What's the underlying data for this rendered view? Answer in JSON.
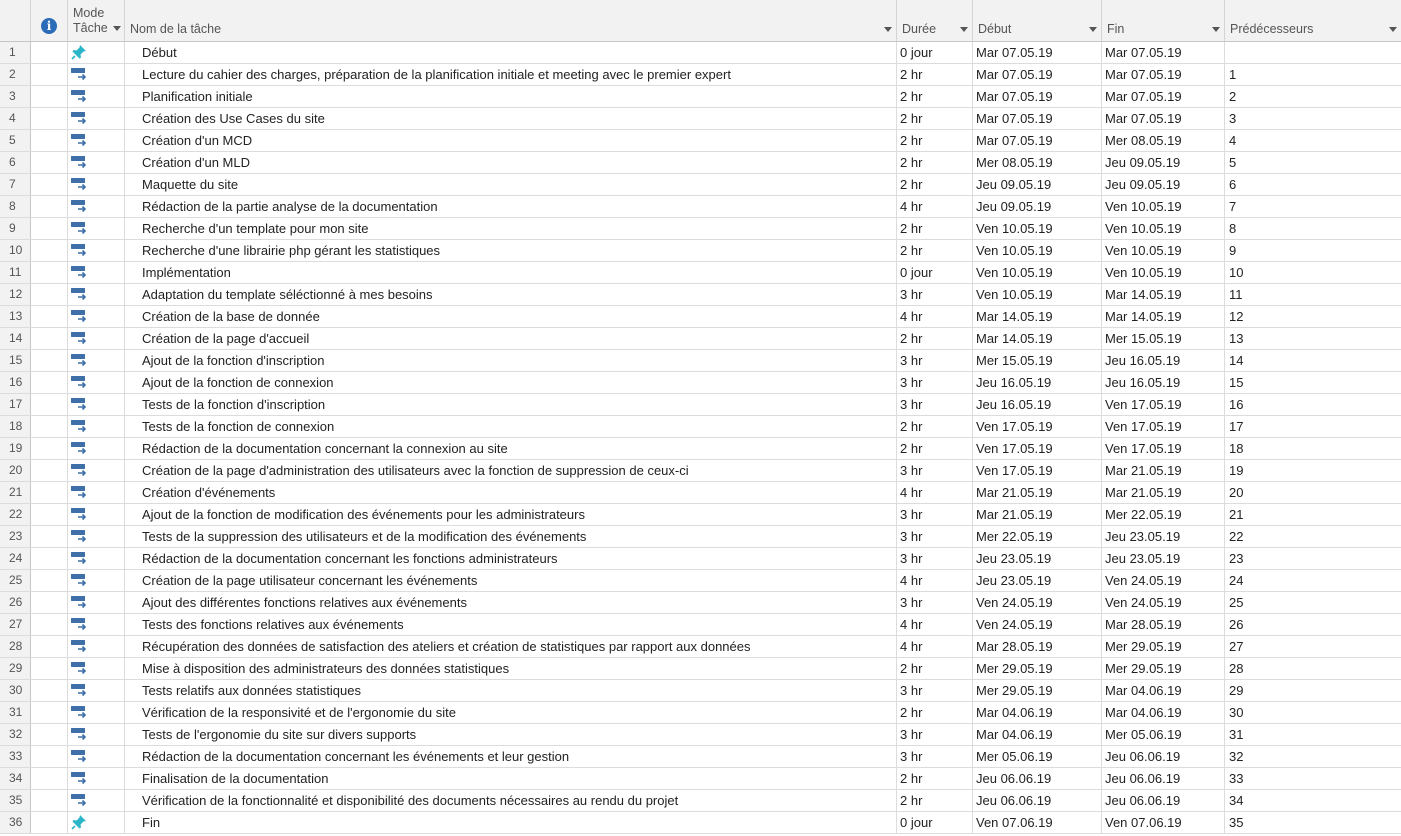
{
  "header": {
    "mode_line1": "Mode",
    "mode_line2": "Tâche",
    "name": "Nom de la tâche",
    "duration": "Durée",
    "start": "Début",
    "finish": "Fin",
    "predecessors": "Prédécesseurs"
  },
  "colors": {
    "auto_icon": "#3f6fa8",
    "pin_icon": "#2bb5c8",
    "info_icon": "#2b6cb8"
  },
  "tasks": [
    {
      "id": "1",
      "mode": "manual",
      "name": "Début",
      "duration": "0 jour",
      "start": "Mar 07.05.19",
      "finish": "Mar 07.05.19",
      "pred": ""
    },
    {
      "id": "2",
      "mode": "auto",
      "name": "Lecture du cahier des charges, préparation de la planification initiale et meeting avec le premier expert",
      "duration": "2 hr",
      "start": "Mar 07.05.19",
      "finish": "Mar 07.05.19",
      "pred": "1"
    },
    {
      "id": "3",
      "mode": "auto",
      "name": "Planification initiale",
      "duration": "2 hr",
      "start": "Mar 07.05.19",
      "finish": "Mar 07.05.19",
      "pred": "2"
    },
    {
      "id": "4",
      "mode": "auto",
      "name": "Création des Use Cases du site",
      "duration": "2 hr",
      "start": "Mar 07.05.19",
      "finish": "Mar 07.05.19",
      "pred": "3"
    },
    {
      "id": "5",
      "mode": "auto",
      "name": "Création d'un MCD",
      "duration": "2 hr",
      "start": "Mar 07.05.19",
      "finish": "Mer 08.05.19",
      "pred": "4"
    },
    {
      "id": "6",
      "mode": "auto",
      "name": "Création d'un MLD",
      "duration": "2 hr",
      "start": "Mer 08.05.19",
      "finish": "Jeu 09.05.19",
      "pred": "5"
    },
    {
      "id": "7",
      "mode": "auto",
      "name": "Maquette du site",
      "duration": "2 hr",
      "start": "Jeu 09.05.19",
      "finish": "Jeu 09.05.19",
      "pred": "6"
    },
    {
      "id": "8",
      "mode": "auto",
      "name": "Rédaction de la partie analyse de la documentation",
      "duration": "4 hr",
      "start": "Jeu 09.05.19",
      "finish": "Ven 10.05.19",
      "pred": "7"
    },
    {
      "id": "9",
      "mode": "auto",
      "name": "Recherche d'un template pour mon site",
      "duration": "2 hr",
      "start": "Ven 10.05.19",
      "finish": "Ven 10.05.19",
      "pred": "8"
    },
    {
      "id": "10",
      "mode": "auto",
      "name": "Recherche d'une librairie php gérant les statistiques",
      "duration": "2 hr",
      "start": "Ven 10.05.19",
      "finish": "Ven 10.05.19",
      "pred": "9"
    },
    {
      "id": "11",
      "mode": "auto",
      "name": "Implémentation",
      "duration": "0 jour",
      "start": "Ven 10.05.19",
      "finish": "Ven 10.05.19",
      "pred": "10"
    },
    {
      "id": "12",
      "mode": "auto",
      "name": "Adaptation du template séléctionné à mes besoins",
      "duration": "3 hr",
      "start": "Ven 10.05.19",
      "finish": "Mar 14.05.19",
      "pred": "11"
    },
    {
      "id": "13",
      "mode": "auto",
      "name": "Création de la base de donnée",
      "duration": "4 hr",
      "start": "Mar 14.05.19",
      "finish": "Mar 14.05.19",
      "pred": "12"
    },
    {
      "id": "14",
      "mode": "auto",
      "name": "Création de la page d'accueil",
      "duration": "2 hr",
      "start": "Mar 14.05.19",
      "finish": "Mer 15.05.19",
      "pred": "13"
    },
    {
      "id": "15",
      "mode": "auto",
      "name": "Ajout de la fonction d'inscription",
      "duration": "3 hr",
      "start": "Mer 15.05.19",
      "finish": "Jeu 16.05.19",
      "pred": "14"
    },
    {
      "id": "16",
      "mode": "auto",
      "name": "Ajout de la fonction de connexion",
      "duration": "3 hr",
      "start": "Jeu 16.05.19",
      "finish": "Jeu 16.05.19",
      "pred": "15"
    },
    {
      "id": "17",
      "mode": "auto",
      "name": "Tests de la fonction d'inscription",
      "duration": "3 hr",
      "start": "Jeu 16.05.19",
      "finish": "Ven 17.05.19",
      "pred": "16"
    },
    {
      "id": "18",
      "mode": "auto",
      "name": "Tests de la fonction de connexion",
      "duration": "2 hr",
      "start": "Ven 17.05.19",
      "finish": "Ven 17.05.19",
      "pred": "17"
    },
    {
      "id": "19",
      "mode": "auto",
      "name": "Rédaction de la documentation concernant la connexion au site",
      "duration": "2 hr",
      "start": "Ven 17.05.19",
      "finish": "Ven 17.05.19",
      "pred": "18"
    },
    {
      "id": "20",
      "mode": "auto",
      "name": "Création de la page d'administration des utilisateurs avec la fonction de suppression de ceux-ci",
      "duration": "3 hr",
      "start": "Ven 17.05.19",
      "finish": "Mar 21.05.19",
      "pred": "19"
    },
    {
      "id": "21",
      "mode": "auto",
      "name": "Création d'événements",
      "duration": "4 hr",
      "start": "Mar 21.05.19",
      "finish": "Mar 21.05.19",
      "pred": "20"
    },
    {
      "id": "22",
      "mode": "auto",
      "name": "Ajout de la fonction de modification des événements pour les administrateurs",
      "duration": "3 hr",
      "start": "Mar 21.05.19",
      "finish": "Mer 22.05.19",
      "pred": "21"
    },
    {
      "id": "23",
      "mode": "auto",
      "name": "Tests de la suppression des utilisateurs et de la modification des événements",
      "duration": "3 hr",
      "start": "Mer 22.05.19",
      "finish": "Jeu 23.05.19",
      "pred": "22"
    },
    {
      "id": "24",
      "mode": "auto",
      "name": "Rédaction de la documentation concernant les fonctions administrateurs",
      "duration": "3 hr",
      "start": "Jeu 23.05.19",
      "finish": "Jeu 23.05.19",
      "pred": "23"
    },
    {
      "id": "25",
      "mode": "auto",
      "name": "Création de la page utilisateur concernant les événements",
      "duration": "4 hr",
      "start": "Jeu 23.05.19",
      "finish": "Ven 24.05.19",
      "pred": "24"
    },
    {
      "id": "26",
      "mode": "auto",
      "name": "Ajout des différentes fonctions relatives aux événements",
      "duration": "3 hr",
      "start": "Ven 24.05.19",
      "finish": "Ven 24.05.19",
      "pred": "25"
    },
    {
      "id": "27",
      "mode": "auto",
      "name": "Tests des fonctions relatives aux événements",
      "duration": "4 hr",
      "start": "Ven 24.05.19",
      "finish": "Mar 28.05.19",
      "pred": "26"
    },
    {
      "id": "28",
      "mode": "auto",
      "name": "Récupération des données de satisfaction des ateliers et création de statistiques par rapport aux données",
      "duration": "4 hr",
      "start": "Mar 28.05.19",
      "finish": "Mer 29.05.19",
      "pred": "27"
    },
    {
      "id": "29",
      "mode": "auto",
      "name": "Mise à disposition des administrateurs des données statistiques",
      "duration": "2 hr",
      "start": "Mer 29.05.19",
      "finish": "Mer 29.05.19",
      "pred": "28"
    },
    {
      "id": "30",
      "mode": "auto",
      "name": "Tests relatifs aux données statistiques",
      "duration": "3 hr",
      "start": "Mer 29.05.19",
      "finish": "Mar 04.06.19",
      "pred": "29"
    },
    {
      "id": "31",
      "mode": "auto",
      "name": "Vérification de la responsivité et de l'ergonomie du site",
      "duration": "2 hr",
      "start": "Mar 04.06.19",
      "finish": "Mar 04.06.19",
      "pred": "30"
    },
    {
      "id": "32",
      "mode": "auto",
      "name": "Tests de l'ergonomie du site sur divers supports",
      "duration": "3 hr",
      "start": "Mar 04.06.19",
      "finish": "Mer 05.06.19",
      "pred": "31"
    },
    {
      "id": "33",
      "mode": "auto",
      "name": "Rédaction de la documentation concernant les événements et leur gestion",
      "duration": "3 hr",
      "start": "Mer 05.06.19",
      "finish": "Jeu 06.06.19",
      "pred": "32"
    },
    {
      "id": "34",
      "mode": "auto",
      "name": "Finalisation de la documentation",
      "duration": "2 hr",
      "start": "Jeu 06.06.19",
      "finish": "Jeu 06.06.19",
      "pred": "33"
    },
    {
      "id": "35",
      "mode": "auto",
      "name": "Vérification de la fonctionnalité et disponibilité des documents nécessaires au rendu du projet",
      "duration": "2 hr",
      "start": "Jeu 06.06.19",
      "finish": "Jeu 06.06.19",
      "pred": "34"
    },
    {
      "id": "36",
      "mode": "manual",
      "name": "Fin",
      "duration": "0 jour",
      "start": "Ven 07.06.19",
      "finish": "Ven 07.06.19",
      "pred": "35"
    }
  ]
}
